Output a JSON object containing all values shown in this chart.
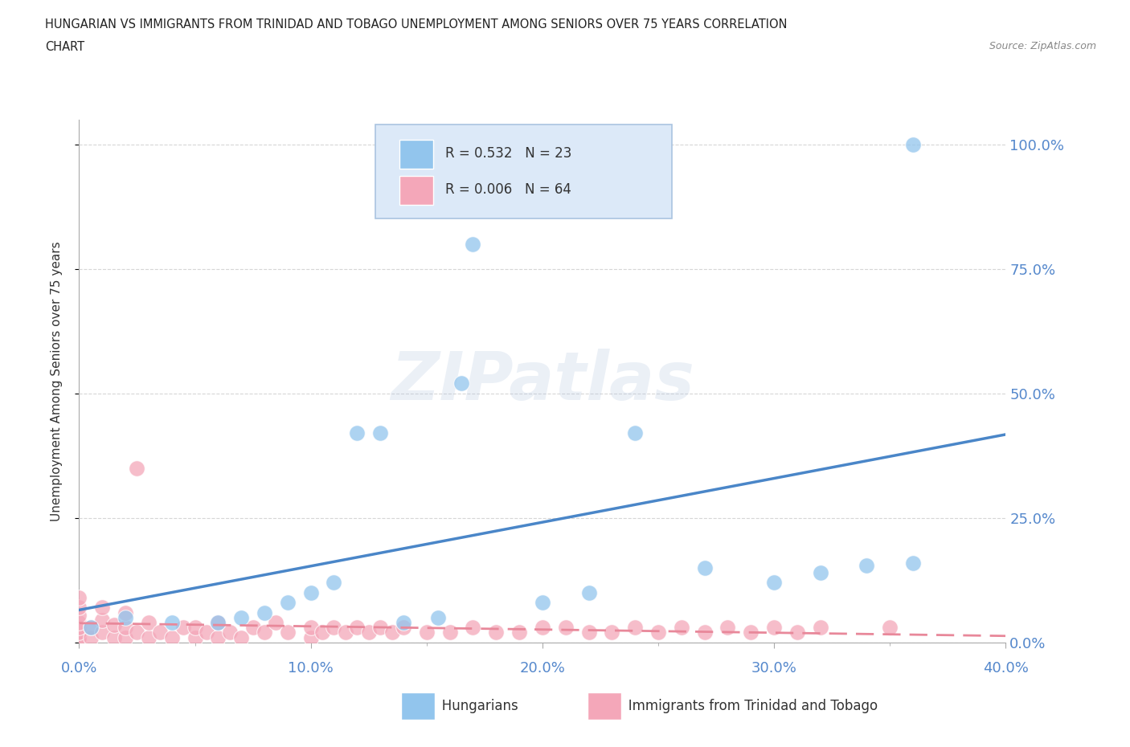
{
  "title_line1": "HUNGARIAN VS IMMIGRANTS FROM TRINIDAD AND TOBAGO UNEMPLOYMENT AMONG SENIORS OVER 75 YEARS CORRELATION",
  "title_line2": "CHART",
  "source": "Source: ZipAtlas.com",
  "ylabel": "Unemployment Among Seniors over 75 years",
  "xlim": [
    0.0,
    0.4
  ],
  "ylim": [
    0.0,
    1.05
  ],
  "xtick_labels": [
    "0.0%",
    "10.0%",
    "20.0%",
    "30.0%",
    "40.0%"
  ],
  "xtick_vals": [
    0.0,
    0.1,
    0.2,
    0.3,
    0.4
  ],
  "ytick_labels": [
    "0.0%",
    "25.0%",
    "50.0%",
    "75.0%",
    "100.0%"
  ],
  "ytick_vals": [
    0.0,
    0.25,
    0.5,
    0.75,
    1.0
  ],
  "hungarian_color": "#92c5ed",
  "trinidad_color": "#f4a7b9",
  "hungarian_R": 0.532,
  "hungarian_N": 23,
  "trinidad_R": 0.006,
  "trinidad_N": 64,
  "regression_blue": "#4a86c8",
  "regression_pink": "#e8889a",
  "watermark": "ZIPatlas",
  "background_color": "#ffffff",
  "hungarian_x": [
    0.005,
    0.02,
    0.04,
    0.06,
    0.07,
    0.08,
    0.09,
    0.1,
    0.11,
    0.12,
    0.13,
    0.14,
    0.155,
    0.165,
    0.17,
    0.2,
    0.22,
    0.24,
    0.27,
    0.3,
    0.32,
    0.34,
    0.36
  ],
  "hungarian_y": [
    0.03,
    0.05,
    0.04,
    0.04,
    0.05,
    0.06,
    0.08,
    0.1,
    0.12,
    0.42,
    0.42,
    0.04,
    0.05,
    0.52,
    0.8,
    0.08,
    0.1,
    0.42,
    0.15,
    0.12,
    0.14,
    0.155,
    0.16
  ],
  "hungarian_x2": [
    0.36
  ],
  "hungarian_y2": [
    1.0
  ],
  "trinidad_x": [
    0.0,
    0.0,
    0.0,
    0.0,
    0.0,
    0.0,
    0.0,
    0.0,
    0.005,
    0.005,
    0.01,
    0.01,
    0.01,
    0.015,
    0.015,
    0.02,
    0.02,
    0.02,
    0.025,
    0.03,
    0.03,
    0.035,
    0.04,
    0.045,
    0.05,
    0.05,
    0.055,
    0.06,
    0.06,
    0.065,
    0.07,
    0.075,
    0.08,
    0.085,
    0.09,
    0.1,
    0.1,
    0.105,
    0.11,
    0.115,
    0.12,
    0.125,
    0.13,
    0.135,
    0.14,
    0.15,
    0.16,
    0.17,
    0.18,
    0.19,
    0.2,
    0.21,
    0.22,
    0.23,
    0.24,
    0.25,
    0.26,
    0.27,
    0.28,
    0.29,
    0.3,
    0.31,
    0.32,
    0.35
  ],
  "trinidad_y": [
    0.005,
    0.01,
    0.02,
    0.03,
    0.04,
    0.055,
    0.07,
    0.09,
    0.01,
    0.03,
    0.02,
    0.045,
    0.07,
    0.01,
    0.035,
    0.01,
    0.03,
    0.06,
    0.02,
    0.01,
    0.04,
    0.02,
    0.01,
    0.03,
    0.01,
    0.03,
    0.02,
    0.01,
    0.04,
    0.02,
    0.01,
    0.03,
    0.02,
    0.04,
    0.02,
    0.01,
    0.03,
    0.02,
    0.03,
    0.02,
    0.03,
    0.02,
    0.03,
    0.02,
    0.03,
    0.02,
    0.02,
    0.03,
    0.02,
    0.02,
    0.03,
    0.03,
    0.02,
    0.02,
    0.03,
    0.02,
    0.03,
    0.02,
    0.03,
    0.02,
    0.03,
    0.02,
    0.03,
    0.03
  ],
  "trinidad_outlier_x": [
    0.025
  ],
  "trinidad_outlier_y": [
    0.35
  ],
  "legend_box_color": "#dce9f8",
  "legend_box_edge": "#aac4e0",
  "tick_color": "#5588cc",
  "spine_color": "#aaaaaa"
}
